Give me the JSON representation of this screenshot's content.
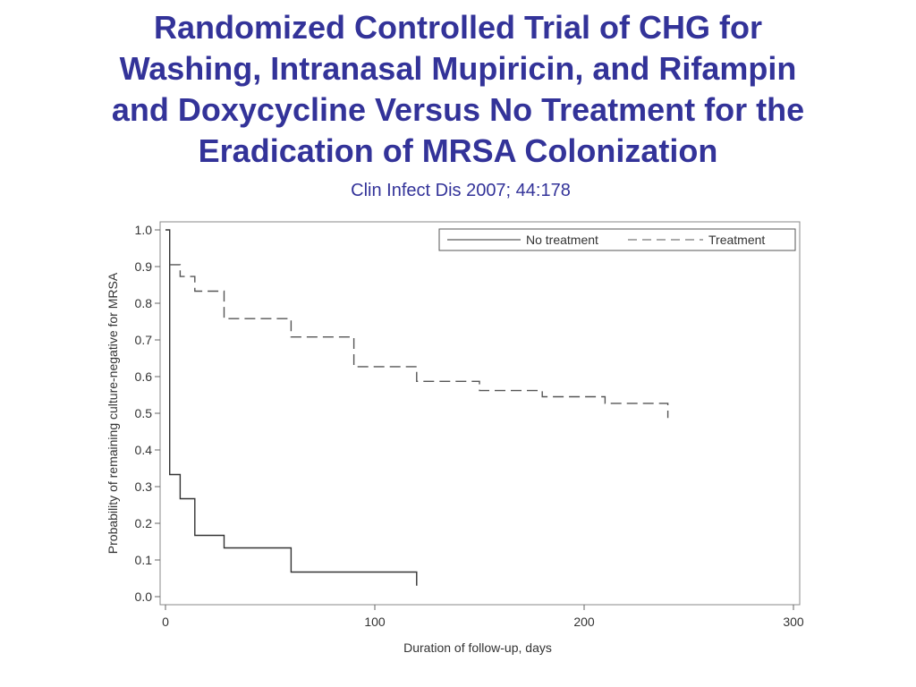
{
  "slide": {
    "title_lines": [
      "Randomized Controlled Trial of CHG for",
      "Washing, Intranasal Mupiricin, and Rifampin",
      "and Doxycycline Versus No Treatment for the",
      "Eradication of MRSA Colonization"
    ],
    "citation": "Clin Infect Dis 2007; 44:178"
  },
  "chart_data": {
    "type": "line",
    "step": true,
    "xlabel": "Duration of follow-up, days",
    "ylabel": "Probability of remaining culture-negative for MRSA",
    "xlim": [
      0,
      300
    ],
    "ylim": [
      0,
      1.0
    ],
    "x_ticks": [
      0,
      100,
      200,
      300
    ],
    "x_tick_labels": [
      "0",
      "100",
      "200",
      "300"
    ],
    "y_ticks": [
      0,
      0.1,
      0.2,
      0.3,
      0.4,
      0.5,
      0.6,
      0.7,
      0.8,
      0.9,
      1.0
    ],
    "y_tick_labels": [
      "0.0",
      "0.1",
      "0.2",
      "0.3",
      "0.4",
      "0.5",
      "0.6",
      "0.7",
      "0.8",
      "0.9",
      "1.0"
    ],
    "grid": false,
    "legend_position": "top-right",
    "series": [
      {
        "name": "No treatment",
        "style": "solid",
        "color": "#333333",
        "points": [
          [
            0,
            1.0
          ],
          [
            2,
            1.0
          ],
          [
            2,
            0.333
          ],
          [
            7,
            0.333
          ],
          [
            7,
            0.267
          ],
          [
            14,
            0.267
          ],
          [
            14,
            0.167
          ],
          [
            28,
            0.167
          ],
          [
            28,
            0.133
          ],
          [
            60,
            0.133
          ],
          [
            60,
            0.067
          ],
          [
            120,
            0.067
          ],
          [
            120,
            0.03
          ]
        ]
      },
      {
        "name": "Treatment",
        "style": "dashed",
        "color": "#555555",
        "points": [
          [
            2,
            0.905
          ],
          [
            7,
            0.905
          ],
          [
            7,
            0.873
          ],
          [
            14,
            0.873
          ],
          [
            14,
            0.833
          ],
          [
            28,
            0.833
          ],
          [
            28,
            0.758
          ],
          [
            60,
            0.758
          ],
          [
            60,
            0.708
          ],
          [
            90,
            0.708
          ],
          [
            90,
            0.627
          ],
          [
            120,
            0.627
          ],
          [
            120,
            0.587
          ],
          [
            150,
            0.587
          ],
          [
            150,
            0.562
          ],
          [
            180,
            0.562
          ],
          [
            180,
            0.545
          ],
          [
            210,
            0.545
          ],
          [
            210,
            0.527
          ],
          [
            240,
            0.527
          ],
          [
            240,
            0.487
          ]
        ]
      }
    ]
  }
}
